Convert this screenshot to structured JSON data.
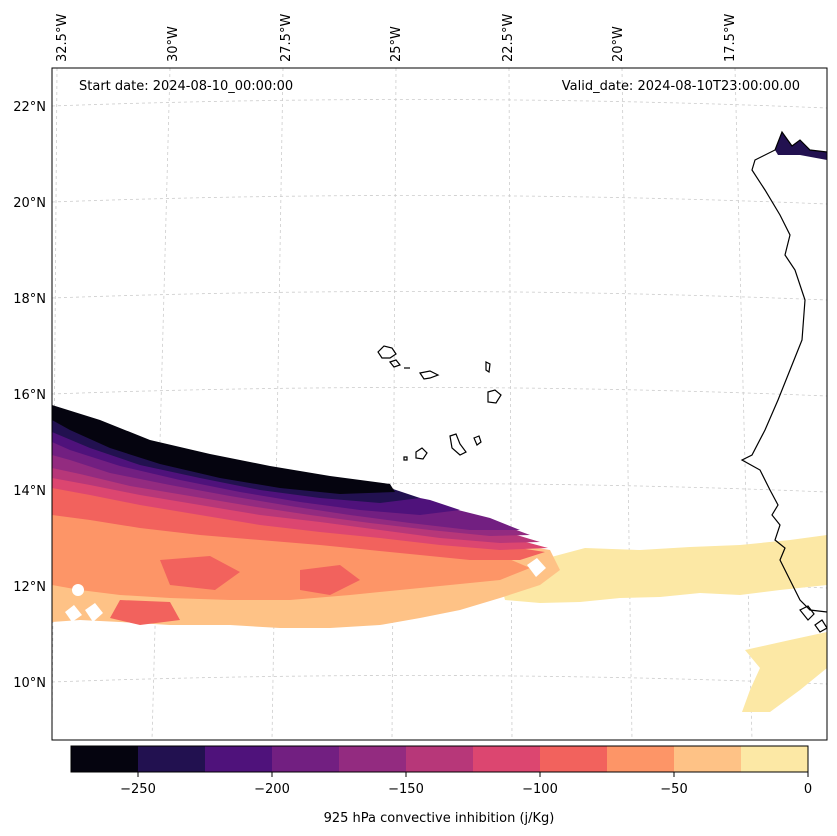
{
  "map": {
    "start_date": "Start date: 2024-08-10_00:00:00",
    "valid_date": "Valid_date: 2024-08-10T23:00:00.00",
    "lon_labels": [
      "32.5°W",
      "30°W",
      "27.5°W",
      "25°W",
      "22.5°W",
      "20°W",
      "17.5°W"
    ],
    "lat_labels": [
      "22°N",
      "20°N",
      "18°N",
      "16°N",
      "14°N",
      "12°N",
      "10°N"
    ],
    "gridlines": true,
    "variable": "925 hPa convective inhibition (j/Kg)",
    "units": "j/Kg",
    "level_hPa": 925
  },
  "colorbar": {
    "label": "925 hPa convective inhibition (j/Kg)",
    "orientation": "horizontal",
    "placement": "bottom",
    "range": [
      -275,
      0
    ],
    "step": 25,
    "tick_labels": [
      "−250",
      "−200",
      "−150",
      "−100",
      "−50",
      "0"
    ],
    "colors": [
      "#05040f",
      "#221150",
      "#4f127b",
      "#721f81",
      "#932b80",
      "#b73779",
      "#dc4670",
      "#f2625d",
      "#fd9567",
      "#fec286",
      "#fce8a5"
    ]
  },
  "colors": {
    "coastline": "#000000",
    "gridline": "#cccccc",
    "frame": "#000000"
  }
}
